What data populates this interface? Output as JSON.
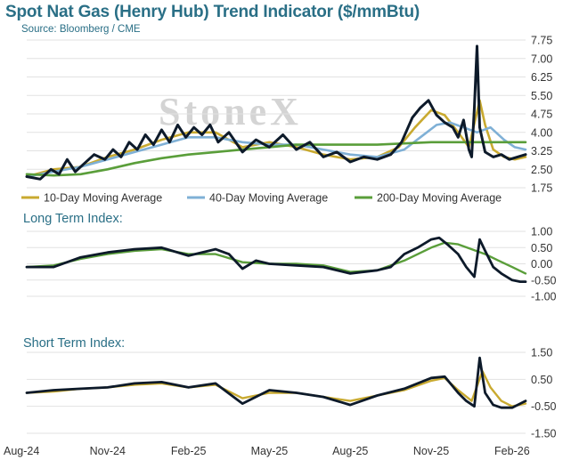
{
  "title": "Spot Nat Gas (Henry Hub) Trend Indicator ($/mmBtu)",
  "source": "Source: Bloomberg / CME",
  "watermark": "StoneX",
  "colors": {
    "spot": "#0d1a2a",
    "ma10": "#c9aa30",
    "ma40": "#7fb0d6",
    "ma200": "#5a9e3a",
    "grid": "#e2e2e2",
    "title": "#2a6f86"
  },
  "chart_data": [
    {
      "type": "line",
      "panel": "price",
      "title": "Spot Nat Gas (Henry Hub) Trend Indicator ($/mmBtu)",
      "ylim": [
        1.75,
        7.75
      ],
      "yticks": [
        "7.75",
        "7.00",
        "6.25",
        "5.50",
        "4.75",
        "4.00",
        "3.25",
        "2.50",
        "1.75"
      ],
      "x_range": [
        0,
        18.5
      ],
      "x_units": "months since Aug-24",
      "series": [
        {
          "name": "",
          "role": "spot",
          "x": [
            0,
            0.5,
            0.9,
            1.2,
            1.5,
            1.8,
            2.1,
            2.5,
            2.9,
            3.2,
            3.5,
            3.8,
            4.1,
            4.4,
            4.7,
            5.0,
            5.3,
            5.6,
            5.9,
            6.2,
            6.5,
            6.8,
            7.1,
            7.5,
            8.0,
            8.5,
            9.0,
            9.5,
            10.0,
            10.5,
            11.0,
            11.5,
            12.0,
            12.5,
            13.0,
            13.5,
            13.9,
            14.3,
            14.6,
            14.9,
            15.2,
            15.5,
            15.8,
            16.0,
            16.2,
            16.4,
            16.5,
            16.6,
            16.7,
            16.8,
            17.0,
            17.3,
            17.6,
            17.9,
            18.2,
            18.5
          ],
          "values": [
            2.2,
            2.1,
            2.5,
            2.3,
            2.9,
            2.4,
            2.7,
            3.1,
            2.9,
            3.3,
            3.0,
            3.6,
            3.3,
            3.9,
            3.5,
            4.1,
            3.6,
            4.3,
            3.8,
            4.2,
            3.9,
            4.3,
            3.6,
            4.0,
            3.2,
            3.7,
            3.4,
            3.9,
            3.3,
            3.6,
            3.0,
            3.2,
            2.8,
            3.0,
            2.9,
            3.1,
            3.6,
            4.6,
            5.0,
            5.3,
            4.7,
            4.4,
            4.2,
            3.8,
            4.5,
            3.3,
            3.0,
            5.0,
            7.5,
            4.2,
            3.2,
            3.0,
            3.1,
            2.9,
            3.0,
            3.1
          ]
        },
        {
          "name": "10-Day Moving Average",
          "role": "ma10",
          "x": [
            0,
            1,
            2,
            3,
            4,
            5,
            6,
            7,
            8,
            9,
            10,
            11,
            12,
            13,
            13.8,
            14.4,
            15.0,
            15.5,
            16.0,
            16.4,
            16.8,
            17.0,
            17.3,
            17.7,
            18.1,
            18.5
          ],
          "values": [
            2.2,
            2.5,
            2.6,
            3.0,
            3.3,
            3.7,
            4.0,
            4.0,
            3.4,
            3.6,
            3.4,
            3.1,
            2.9,
            3.0,
            3.4,
            4.2,
            4.9,
            4.7,
            4.0,
            3.4,
            5.3,
            4.3,
            3.3,
            3.0,
            2.9,
            3.0
          ]
        },
        {
          "name": "40-Day Moving Average",
          "role": "ma40",
          "x": [
            0,
            1,
            2,
            3,
            4,
            5,
            6,
            7,
            8,
            9,
            10,
            11,
            12,
            13,
            14,
            14.6,
            15.2,
            15.7,
            16.2,
            16.7,
            17.2,
            17.7,
            18.1,
            18.5
          ],
          "values": [
            2.2,
            2.4,
            2.6,
            2.9,
            3.2,
            3.5,
            3.8,
            3.8,
            3.6,
            3.5,
            3.5,
            3.3,
            3.1,
            3.0,
            3.3,
            3.8,
            4.3,
            4.4,
            4.2,
            4.0,
            4.2,
            3.7,
            3.4,
            3.3
          ]
        },
        {
          "name": "200-Day Moving Average",
          "role": "ma200",
          "x": [
            0,
            1,
            2,
            3,
            4,
            5,
            6,
            7,
            8,
            9,
            10,
            11,
            12,
            13,
            14,
            15,
            16,
            17,
            18,
            18.5
          ],
          "values": [
            2.3,
            2.25,
            2.3,
            2.5,
            2.75,
            2.95,
            3.1,
            3.2,
            3.3,
            3.4,
            3.5,
            3.5,
            3.5,
            3.5,
            3.55,
            3.6,
            3.6,
            3.6,
            3.6,
            3.6
          ]
        }
      ]
    },
    {
      "type": "line",
      "panel": "long_term",
      "title": "Long Term Index:",
      "ylim": [
        -1.0,
        1.0
      ],
      "yticks": [
        "1.00",
        "0.50",
        "0.00",
        "-0.50",
        "-1.00"
      ],
      "x_range": [
        0,
        18.5
      ],
      "series": [
        {
          "name": "",
          "role": "index",
          "x": [
            0,
            1,
            2,
            3,
            4,
            5,
            6,
            7,
            7.5,
            8,
            8.5,
            9,
            10,
            11,
            12,
            13,
            13.5,
            14,
            14.5,
            15,
            15.3,
            15.6,
            16,
            16.3,
            16.6,
            16.8,
            17.0,
            17.3,
            17.6,
            18,
            18.3,
            18.5
          ],
          "values": [
            -0.1,
            -0.1,
            0.2,
            0.35,
            0.45,
            0.5,
            0.25,
            0.45,
            0.3,
            -0.15,
            0.1,
            0.0,
            -0.05,
            -0.1,
            -0.3,
            -0.2,
            -0.1,
            0.3,
            0.5,
            0.75,
            0.8,
            0.6,
            0.3,
            -0.1,
            -0.4,
            0.75,
            0.4,
            -0.1,
            -0.3,
            -0.5,
            -0.55,
            -0.55
          ]
        },
        {
          "name": "",
          "role": "signal",
          "x": [
            0,
            1,
            2,
            3,
            4,
            5,
            6,
            7,
            8,
            9,
            10,
            11,
            12,
            13,
            14,
            15,
            15.5,
            16,
            16.5,
            17,
            17.5,
            18,
            18.5
          ],
          "values": [
            -0.1,
            -0.05,
            0.15,
            0.3,
            0.4,
            0.45,
            0.3,
            0.3,
            0.05,
            0.0,
            0.0,
            -0.05,
            -0.25,
            -0.2,
            0.1,
            0.5,
            0.65,
            0.6,
            0.45,
            0.3,
            0.1,
            -0.1,
            -0.3
          ]
        }
      ]
    },
    {
      "type": "line",
      "panel": "short_term",
      "title": "Short Term Index:",
      "ylim": [
        -1.5,
        1.5
      ],
      "yticks": [
        "1.50",
        "0.50",
        "-0.50",
        "-1.50"
      ],
      "x_range": [
        0,
        18.5
      ],
      "xticks": [
        "Aug-24",
        "Nov-24",
        "Feb-25",
        "May-25",
        "Aug-25",
        "Nov-25",
        "Feb-26"
      ],
      "series": [
        {
          "name": "",
          "role": "index",
          "x": [
            0,
            1,
            2,
            3,
            4,
            5,
            6,
            7,
            8,
            9,
            10,
            11,
            12,
            13,
            14,
            15,
            15.5,
            16,
            16.3,
            16.6,
            16.8,
            17.0,
            17.3,
            17.6,
            18,
            18.5
          ],
          "values": [
            0.0,
            0.1,
            0.15,
            0.2,
            0.35,
            0.4,
            0.2,
            0.35,
            -0.4,
            0.1,
            0.0,
            -0.15,
            -0.45,
            -0.1,
            0.15,
            0.55,
            0.6,
            0.0,
            -0.3,
            -0.5,
            1.3,
            0.0,
            -0.45,
            -0.55,
            -0.55,
            -0.3
          ]
        },
        {
          "name": "",
          "role": "signal",
          "x": [
            0,
            1,
            2,
            3,
            4,
            5,
            6,
            7,
            8,
            9,
            10,
            11,
            12,
            13,
            14,
            15,
            15.5,
            16,
            16.5,
            16.9,
            17.2,
            17.6,
            18,
            18.5
          ],
          "values": [
            0.0,
            0.05,
            0.15,
            0.2,
            0.3,
            0.35,
            0.2,
            0.3,
            -0.2,
            0.0,
            0.0,
            -0.15,
            -0.3,
            -0.1,
            0.1,
            0.45,
            0.55,
            0.1,
            -0.3,
            0.8,
            0.2,
            -0.3,
            -0.5,
            -0.4
          ]
        }
      ]
    }
  ],
  "legend": [
    {
      "label": "10-Day Moving Average",
      "color_key": "ma10"
    },
    {
      "label": "40-Day Moving Average",
      "color_key": "ma40"
    },
    {
      "label": "200-Day Moving Average",
      "color_key": "ma200"
    }
  ]
}
